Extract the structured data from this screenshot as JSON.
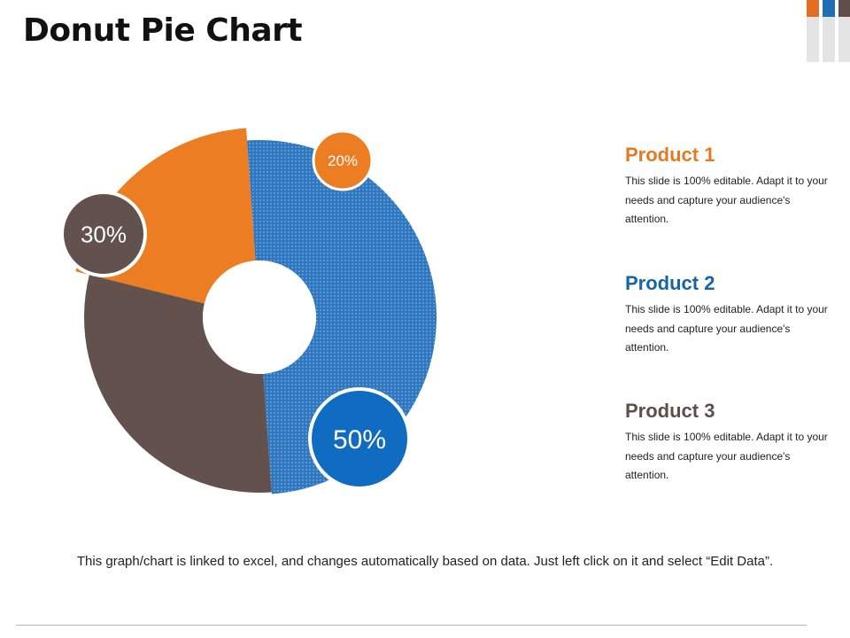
{
  "page": {
    "title": "Donut Pie Chart"
  },
  "chart_data": {
    "type": "pie",
    "variant": "donut",
    "title": "Donut Pie Chart",
    "series": [
      {
        "name": "Product 1",
        "value": 20,
        "label": "20%",
        "color": "#ED7D22"
      },
      {
        "name": "Product 3",
        "value": 30,
        "label": "30%",
        "color": "#63514D"
      },
      {
        "name": "Product 2",
        "value": 50,
        "label": "50%",
        "color": "#2F78C0"
      }
    ]
  },
  "legend": [
    {
      "title": "Product 1",
      "color": "#E47A21",
      "description": "This slide is 100% editable. Adapt it to your needs and capture your audience's attention."
    },
    {
      "title": "Product 2",
      "color": "#1565A9",
      "description": "This slide is 100% editable. Adapt it to your needs and capture your audience's attention."
    },
    {
      "title": "Product 3",
      "color": "#5E4F4B",
      "description": "This slide is 100% editable. Adapt it to your needs and capture your audience's attention."
    }
  ],
  "footnote": "This graph/chart is linked to excel, and changes automatically based on data. Just left click on it and select “Edit Data”.",
  "decor_colors": {
    "orange": "#E46E1F",
    "blue": "#1F6FB5",
    "gray": "#E4E4E4",
    "brown": "#5E4F4B"
  }
}
